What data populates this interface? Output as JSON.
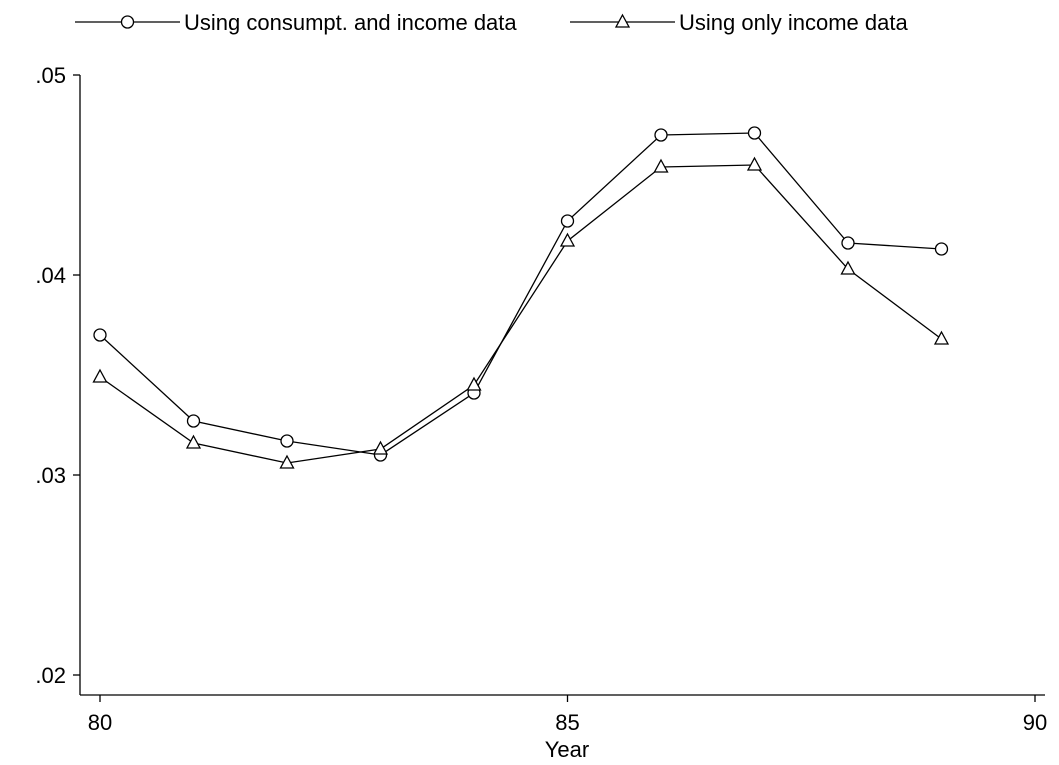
{
  "chart_data": {
    "type": "line",
    "title": "",
    "xlabel": "Year",
    "ylabel": "",
    "xlim": [
      80,
      90
    ],
    "ylim": [
      0.02,
      0.05
    ],
    "x_ticks": [
      80,
      85,
      90
    ],
    "x_tick_labels": [
      "80",
      "85",
      "90"
    ],
    "y_ticks": [
      0.02,
      0.03,
      0.04,
      0.05
    ],
    "y_tick_labels": [
      ".02",
      ".03",
      ".04",
      ".05"
    ],
    "grid": false,
    "legend_position": "top",
    "series": [
      {
        "name": "Using consumpt. and income data",
        "marker": "circle",
        "x": [
          80,
          81,
          82,
          83,
          84,
          85,
          86,
          87,
          88,
          89
        ],
        "y": [
          0.037,
          0.0327,
          0.0317,
          0.031,
          0.0341,
          0.0427,
          0.047,
          0.0471,
          0.0416,
          0.0413
        ]
      },
      {
        "name": "Using only income data",
        "marker": "triangle",
        "x": [
          80,
          81,
          82,
          83,
          84,
          85,
          86,
          87,
          88,
          89
        ],
        "y": [
          0.0349,
          0.0316,
          0.0306,
          0.0313,
          0.0345,
          0.0417,
          0.0454,
          0.0455,
          0.0403,
          0.0368
        ]
      }
    ],
    "line_color": "#000000"
  }
}
